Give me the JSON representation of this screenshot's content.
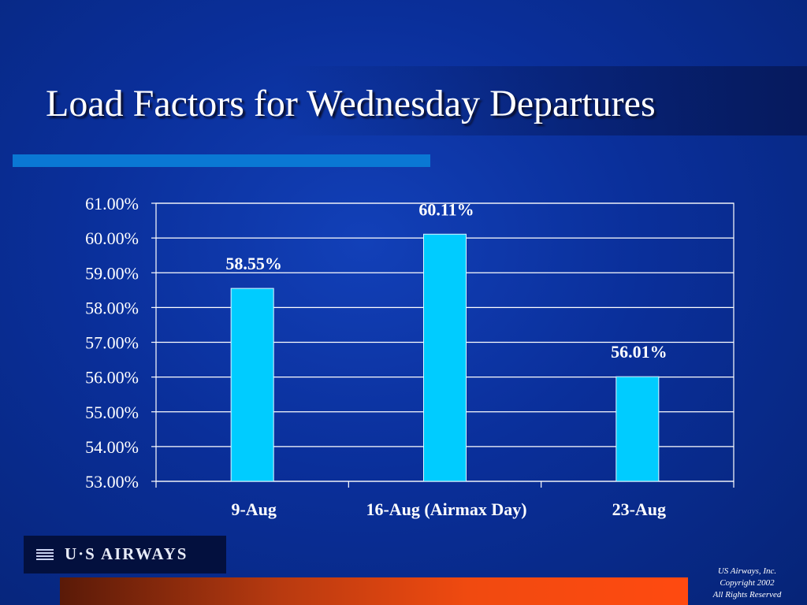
{
  "slide": {
    "title": "Load Factors for Wednesday Departures",
    "logo_text": "U·S AIRWAYS",
    "copyright_lines": [
      "US Airways, Inc.",
      "Copyright 2002",
      "All Rights Reserved"
    ]
  },
  "colors": {
    "background": "#0a2f9a",
    "bar_fill": "#00ccff",
    "gridline": "#ffffff",
    "title_rule": "#0a78d4",
    "bottom_bar": "#ff4a10",
    "text": "#ffffff"
  },
  "chart_data": {
    "type": "bar",
    "title": "",
    "xlabel": "",
    "ylabel": "",
    "categories": [
      "9-Aug",
      "16-Aug (Airmax Day)",
      "23-Aug"
    ],
    "values": [
      58.55,
      60.11,
      56.01
    ],
    "data_labels": [
      "58.55%",
      "60.11%",
      "56.01%"
    ],
    "ylim": [
      53.0,
      61.0
    ],
    "yticks": [
      53,
      54,
      55,
      56,
      57,
      58,
      59,
      60,
      61
    ],
    "ytick_labels": [
      "53.00%",
      "54.00%",
      "55.00%",
      "56.00%",
      "57.00%",
      "58.00%",
      "59.00%",
      "60.00%",
      "61.00%"
    ],
    "grid": true,
    "legend": "none"
  }
}
